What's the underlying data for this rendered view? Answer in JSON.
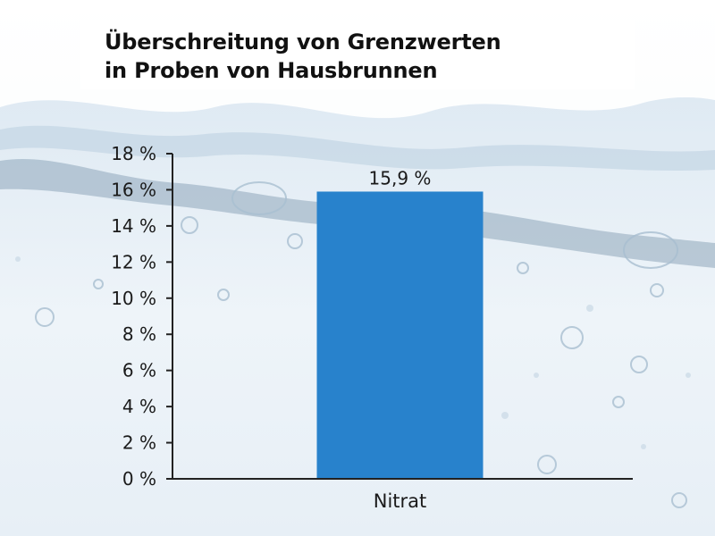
{
  "title_lines": [
    "Überschreitung von Grenzwerten",
    "in Proben von Hausbrunnen"
  ],
  "colors": {
    "bar": "#2882cc",
    "axis": "#222222",
    "water_light": "#e4eef6",
    "water_mid": "#b9cfe2",
    "water_dark": "#7e97ad"
  },
  "chart_data": {
    "type": "bar",
    "title": "Überschreitung von Grenzwerten in Proben von Hausbrunnen",
    "xlabel": "",
    "ylabel": "",
    "categories": [
      "Nitrat"
    ],
    "values": [
      15.9
    ],
    "value_labels": [
      "15,9 %"
    ],
    "ylim": [
      0,
      18
    ],
    "yticks": [
      0,
      2,
      4,
      6,
      8,
      10,
      12,
      14,
      16,
      18
    ],
    "ytick_labels": [
      "0 %",
      "2 %",
      "4 %",
      "6 %",
      "8 %",
      "10 %",
      "12 %",
      "14 %",
      "16 %",
      "18 %"
    ],
    "grid": false,
    "legend": "none"
  }
}
